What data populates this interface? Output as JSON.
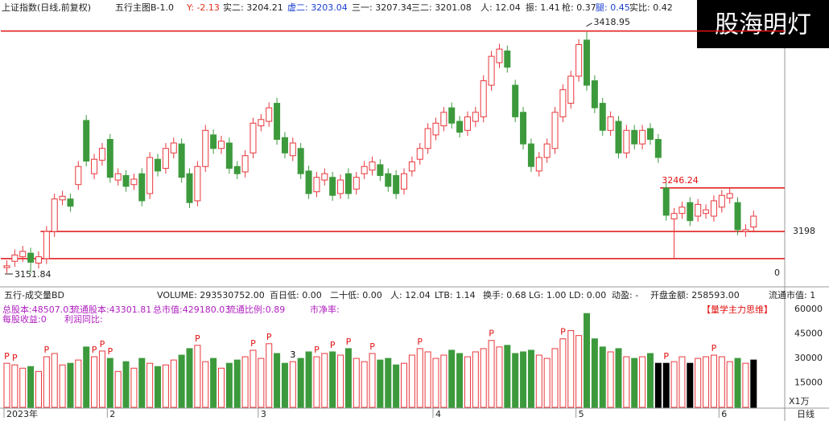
{
  "logo": "股海明灯",
  "chart_data": [
    {
      "type": "candlestick",
      "header": [
        "上证指数(日线,前复权)",
        "五行主图B-1.0",
        "Y: -2.13",
        "实二: 3204.21",
        "虚二: 3203.04",
        "三一: 3207.34",
        "三二: 3201.08",
        "人: 12.04",
        "振: 1.41",
        "枪: 0.37",
        "腿: 0.45",
        "实比: 0.42"
      ],
      "header_colors": [
        "#222222",
        "#222222",
        "#e0301e",
        "#222222",
        "#1a3fd0",
        "#222222",
        "#222222",
        "#222222",
        "#222222",
        "#222222",
        "#1a3fd0",
        "#222222"
      ],
      "categories": [
        "2023年",
        null,
        null,
        null,
        null,
        null,
        null,
        null,
        null,
        null,
        null,
        null,
        null,
        "2",
        null,
        null,
        null,
        null,
        null,
        null,
        null,
        null,
        null,
        null,
        null,
        null,
        null,
        null,
        null,
        null,
        null,
        null,
        "3",
        null,
        null,
        null,
        null,
        null,
        null,
        null,
        null,
        null,
        null,
        null,
        null,
        null,
        null,
        null,
        null,
        null,
        null,
        null,
        null,
        null,
        "4",
        null,
        null,
        null,
        null,
        null,
        null,
        null,
        null,
        null,
        null,
        null,
        null,
        null,
        null,
        null,
        null,
        null,
        "5",
        null,
        null,
        null,
        null,
        null,
        null,
        null,
        null,
        null,
        null,
        null,
        null,
        null,
        null,
        null,
        null,
        null,
        "6",
        null,
        null,
        null,
        null
      ],
      "x_axis_name": "日线",
      "open": [
        3158,
        3165,
        3170,
        3174,
        3163,
        3168,
        3198,
        3233,
        3234,
        3250,
        3321,
        3262,
        3277,
        3300,
        3255,
        3260,
        3250,
        3262,
        3240,
        3278,
        3268,
        3285,
        3295,
        3262,
        3232,
        3270,
        3305,
        3290,
        3296,
        3270,
        3264,
        3285,
        3315,
        3320,
        3340,
        3302,
        3282,
        3290,
        3265,
        3242,
        3255,
        3258,
        3240,
        3262,
        3245,
        3262,
        3266,
        3272,
        3262,
        3260,
        3245,
        3265,
        3278,
        3290,
        3305,
        3315,
        3335,
        3320,
        3310,
        3320,
        3325,
        3360,
        3385,
        3398,
        3360,
        3330,
        3295,
        3265,
        3280,
        3290,
        3325,
        3340,
        3370,
        3410,
        3365,
        3340,
        3310,
        3320,
        3285,
        3310,
        3295,
        3312,
        3300,
        3246.24,
        3212,
        3218,
        3230,
        3215,
        3218,
        3215,
        3225,
        3235,
        3230,
        3198,
        3203
      ],
      "high": [
        3166,
        3178,
        3182,
        3180,
        3176,
        3204,
        3240,
        3243,
        3240,
        3276,
        3327,
        3284,
        3296,
        3306,
        3268,
        3266,
        3262,
        3268,
        3286,
        3284,
        3296,
        3302,
        3301,
        3268,
        3276,
        3316,
        3311,
        3304,
        3302,
        3276,
        3288,
        3324,
        3328,
        3341,
        3346,
        3308,
        3302,
        3296,
        3271,
        3264,
        3268,
        3264,
        3261,
        3268,
        3264,
        3276,
        3281,
        3278,
        3268,
        3266,
        3268,
        3281,
        3296,
        3318,
        3324,
        3336,
        3341,
        3326,
        3331,
        3336,
        3371,
        3398,
        3406,
        3404,
        3366,
        3336,
        3301,
        3286,
        3301,
        3336,
        3361,
        3376,
        3411,
        3418.95,
        3371,
        3346,
        3331,
        3326,
        3316,
        3316,
        3316,
        3318,
        3306,
        3252,
        3224,
        3231,
        3236,
        3234,
        3228,
        3238,
        3244,
        3246,
        3236,
        3206,
        3221
      ],
      "low": [
        3152,
        3159,
        3164,
        3151.84,
        3157,
        3162,
        3192,
        3227,
        3220,
        3244,
        3270,
        3256,
        3271,
        3252,
        3249,
        3242,
        3244,
        3226,
        3234,
        3259,
        3262,
        3279,
        3252,
        3224,
        3226,
        3264,
        3284,
        3284,
        3262,
        3256,
        3258,
        3279,
        3309,
        3314,
        3294,
        3279,
        3276,
        3256,
        3234,
        3236,
        3249,
        3232,
        3234,
        3234,
        3239,
        3256,
        3260,
        3254,
        3242,
        3234,
        3239,
        3259,
        3272,
        3284,
        3299,
        3309,
        3312,
        3302,
        3304,
        3314,
        3319,
        3354,
        3379,
        3374,
        3319,
        3289,
        3264,
        3259,
        3274,
        3284,
        3319,
        3334,
        3364,
        3354,
        3329,
        3304,
        3304,
        3279,
        3279,
        3289,
        3289,
        3294,
        3274,
        3210,
        3168,
        3212,
        3204,
        3209,
        3212,
        3209,
        3219,
        3229,
        3194,
        3192,
        3197
      ],
      "close": [
        3160,
        3172,
        3176,
        3164,
        3170,
        3198,
        3234,
        3237,
        3226,
        3270,
        3276,
        3278,
        3290,
        3258,
        3262,
        3248,
        3256,
        3232,
        3280,
        3265,
        3290,
        3296,
        3258,
        3230,
        3270,
        3310,
        3290,
        3298,
        3268,
        3262,
        3282,
        3318,
        3322,
        3335,
        3300,
        3285,
        3296,
        3262,
        3240,
        3258,
        3262,
        3238,
        3255,
        3240,
        3258,
        3270,
        3275,
        3260,
        3248,
        3240,
        3262,
        3275,
        3290,
        3312,
        3318,
        3330,
        3318,
        3308,
        3325,
        3330,
        3365,
        3392,
        3400,
        3380,
        3325,
        3295,
        3270,
        3280,
        3295,
        3330,
        3355,
        3370,
        3405,
        3360,
        3335,
        3310,
        3325,
        3285,
        3310,
        3295,
        3310,
        3300,
        3280,
        3216,
        3218,
        3225,
        3210,
        3228,
        3222,
        3232,
        3238,
        3240,
        3200,
        3200,
        3215
      ],
      "up_color": "#e8373c",
      "down_color": "#3c9a3c",
      "ylim": [
        3138.5,
        3436.6
      ],
      "yticks": [
        3198
      ],
      "right_marker": 0,
      "lines": [
        {
          "value": 3420,
          "start": 0
        },
        {
          "value": 3198,
          "start": 5
        },
        {
          "value": 3168,
          "start": 0
        },
        {
          "value": 3246.24,
          "start": 83
        }
      ],
      "line_color": "#e01010"
    },
    {
      "type": "volume",
      "header": [
        "五行-成交量BD",
        "VOLUME: 293530752.00",
        "百日低: 0.00",
        "二十低: 0.00",
        "人: 12.04",
        "LTB: 1.14",
        "换手: 0.68",
        "LG: 1.00",
        "LD: 0.00",
        "动盈: -",
        "开盘金额: 258593.00",
        "流通市值: 1"
      ],
      "info": [
        "总股本:48507.03",
        "流通股本:43301.81",
        "总市值:429180.03",
        "流通比例:0.89",
        "市净率:",
        "每股收益:0",
        "利润同比:",
        "【量学主力思维】"
      ],
      "unit": "X1万",
      "values": [
        27000,
        26000,
        24000,
        25000,
        22000,
        31000,
        33000,
        26000,
        27000,
        29000,
        37000,
        31000,
        34500,
        30000,
        22000,
        28000,
        24000,
        30000,
        27000,
        25000,
        26000,
        29000,
        32000,
        36000,
        38000,
        28000,
        30000,
        24000,
        27000,
        29000,
        31000,
        35000,
        30000,
        39000,
        33000,
        27000,
        28000,
        30000,
        34000,
        31000,
        33000,
        34000,
        32000,
        36000,
        30000,
        28000,
        33000,
        29000,
        30000,
        26000,
        27000,
        32000,
        36000,
        34000,
        30000,
        32000,
        35000,
        33000,
        31000,
        34000,
        36000,
        41000,
        37000,
        38000,
        33000,
        34000,
        35000,
        32000,
        30000,
        36000,
        42000,
        47000,
        44000,
        57500,
        42000,
        37000,
        34000,
        36000,
        31000,
        30000,
        31000,
        33000,
        27000,
        27000,
        28000,
        31000,
        27000,
        30000,
        31000,
        32000,
        31000,
        28000,
        30000,
        27000,
        29000
      ],
      "black_bars": [
        82,
        83,
        86,
        94
      ],
      "flags": [
        "P",
        "P",
        null,
        null,
        null,
        "P",
        null,
        null,
        null,
        null,
        null,
        "P",
        "P",
        "P",
        null,
        null,
        null,
        null,
        null,
        null,
        null,
        null,
        null,
        null,
        "P",
        null,
        null,
        null,
        null,
        null,
        null,
        "P",
        null,
        "P",
        null,
        null,
        "3",
        null,
        null,
        "P",
        null,
        "P",
        null,
        "P",
        null,
        null,
        "P",
        null,
        null,
        null,
        null,
        null,
        "P",
        null,
        null,
        null,
        null,
        null,
        null,
        null,
        null,
        "P",
        null,
        null,
        null,
        null,
        null,
        null,
        null,
        null,
        "P",
        null,
        null,
        null,
        null,
        null,
        null,
        null,
        null,
        null,
        null,
        null,
        null,
        "P",
        null,
        null,
        null,
        null,
        null,
        "P",
        null,
        null,
        null,
        null,
        null
      ],
      "ylim": [
        0,
        65000
      ],
      "yticks": [
        15000,
        30000,
        45000,
        60000
      ]
    }
  ]
}
